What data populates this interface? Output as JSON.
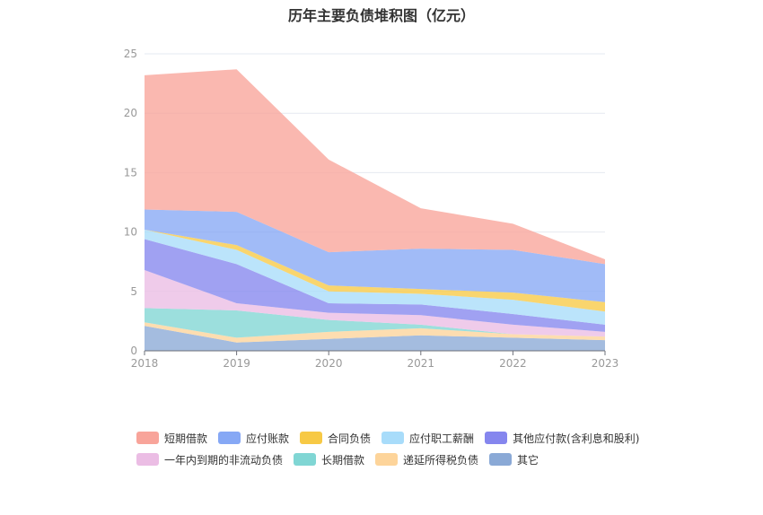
{
  "chart_data": {
    "type": "area",
    "stacked": true,
    "title": "历年主要负债堆积图（亿元）",
    "xlabel": "",
    "ylabel": "",
    "categories": [
      "2018",
      "2019",
      "2020",
      "2021",
      "2022",
      "2023"
    ],
    "ylim": [
      0,
      25
    ],
    "yticks": [
      "0",
      "5",
      "10",
      "15",
      "20",
      "25"
    ],
    "grid": true,
    "legend_position": "bottom",
    "series": [
      {
        "name": "其它",
        "color": "#8aa9d6",
        "values": [
          2.1,
          0.7,
          1.0,
          1.3,
          1.1,
          0.9
        ]
      },
      {
        "name": "递延所得税负债",
        "color": "#fdd49a",
        "values": [
          0.3,
          0.4,
          0.6,
          0.6,
          0.3,
          0.3
        ]
      },
      {
        "name": "长期借款",
        "color": "#80d6d4",
        "values": [
          1.2,
          2.3,
          1.0,
          0.3,
          0.0,
          0.0
        ]
      },
      {
        "name": "一年内到期的非流动负债",
        "color": "#ebbde4",
        "values": [
          3.2,
          0.6,
          0.6,
          0.8,
          0.8,
          0.4
        ]
      },
      {
        "name": "其他应付款(含利息和股利)",
        "color": "#8586ee",
        "values": [
          2.6,
          3.3,
          0.8,
          0.9,
          0.9,
          0.6
        ]
      },
      {
        "name": "应付职工薪酬",
        "color": "#a8dcfa",
        "values": [
          0.8,
          1.2,
          1.0,
          0.9,
          1.2,
          1.1
        ]
      },
      {
        "name": "合同负债",
        "color": "#f7c945",
        "values": [
          0.0,
          0.4,
          0.5,
          0.4,
          0.6,
          0.8
        ]
      },
      {
        "name": "应付账款",
        "color": "#86a8f5",
        "values": [
          1.7,
          2.8,
          2.8,
          3.4,
          3.6,
          3.2
        ]
      },
      {
        "name": "短期借款",
        "color": "#f8a49a",
        "values": [
          11.3,
          12.0,
          7.8,
          3.4,
          2.2,
          0.4
        ]
      }
    ],
    "legend": [
      "短期借款",
      "应付账款",
      "合同负债",
      "应付职工薪酬",
      "其他应付款(含利息和股利)",
      "一年内到期的非流动负债",
      "长期借款",
      "递延所得税负债",
      "其它"
    ]
  }
}
